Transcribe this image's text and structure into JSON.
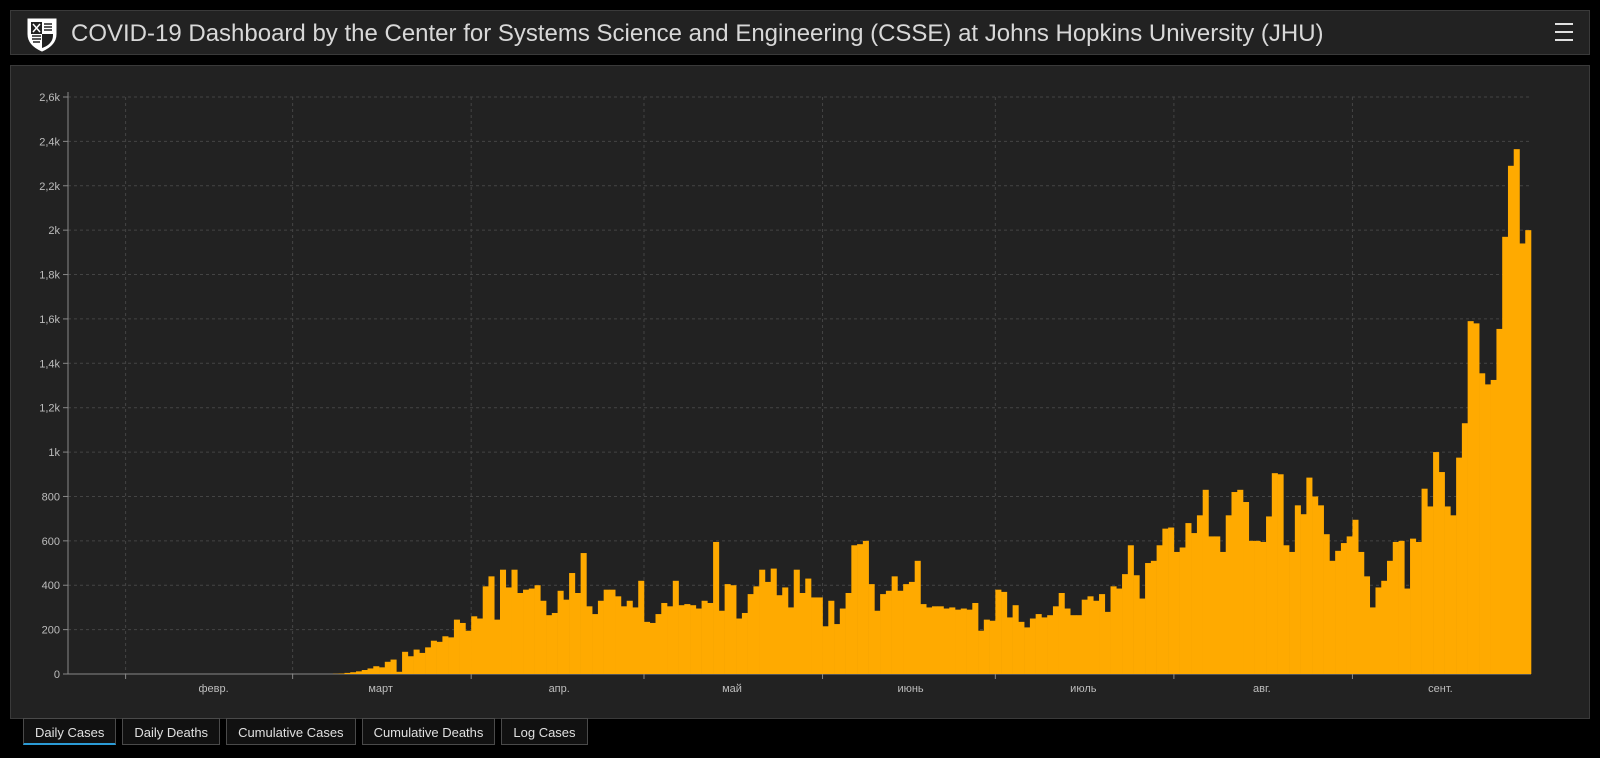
{
  "header": {
    "title": "COVID-19 Dashboard by the Center for Systems Science and Engineering (CSSE) at Johns Hopkins University (JHU)",
    "logo_icon": "jhu-shield-icon",
    "menu_icon": "hamburger-menu-icon"
  },
  "colors": {
    "bar": "#ffaa00",
    "background": "#222222",
    "grid": "#444444",
    "tab_active_underline": "#2b9bd6"
  },
  "tabs": [
    {
      "label": "Daily Cases",
      "active": true
    },
    {
      "label": "Daily Deaths",
      "active": false
    },
    {
      "label": "Cumulative Cases",
      "active": false
    },
    {
      "label": "Cumulative Deaths",
      "active": false
    },
    {
      "label": "Log Cases",
      "active": false
    }
  ],
  "chart_data": {
    "type": "bar",
    "title": "",
    "xlabel": "",
    "ylabel": "",
    "ylim": [
      0,
      2600
    ],
    "yticks": [
      0,
      200,
      400,
      600,
      800,
      1000,
      1200,
      1400,
      1600,
      1800,
      2000,
      2200,
      2400,
      2600
    ],
    "ytick_labels": [
      "0",
      "200",
      "400",
      "600",
      "800",
      "1k",
      "1,2k",
      "1,4k",
      "1,6k",
      "1,8k",
      "2k",
      "2,2k",
      "2,4k",
      "2,6k"
    ],
    "xtick_labels": [
      "февр.",
      "март",
      "апр.",
      "май",
      "июнь",
      "июль",
      "авг.",
      "сент."
    ],
    "xtick_day_index": [
      10,
      39,
      70,
      100,
      131,
      161,
      192,
      223
    ],
    "grid": true,
    "values": [
      0,
      0,
      0,
      0,
      0,
      0,
      0,
      0,
      0,
      0,
      0,
      0,
      0,
      0,
      0,
      0,
      0,
      0,
      0,
      0,
      0,
      0,
      0,
      0,
      0,
      0,
      0,
      0,
      0,
      0,
      0,
      0,
      0,
      0,
      0,
      0,
      0,
      0,
      0,
      0,
      0,
      0,
      0,
      0,
      0,
      0,
      1,
      2,
      5,
      8,
      12,
      18,
      25,
      35,
      30,
      55,
      65,
      10,
      100,
      80,
      110,
      95,
      120,
      150,
      145,
      170,
      165,
      245,
      230,
      195,
      260,
      250,
      395,
      440,
      245,
      470,
      390,
      470,
      365,
      380,
      385,
      400,
      330,
      265,
      275,
      375,
      335,
      455,
      365,
      545,
      305,
      270,
      330,
      380,
      380,
      350,
      305,
      330,
      300,
      420,
      235,
      230,
      270,
      320,
      305,
      420,
      310,
      315,
      310,
      295,
      330,
      320,
      595,
      285,
      405,
      400,
      250,
      275,
      360,
      395,
      470,
      415,
      475,
      355,
      390,
      300,
      470,
      365,
      430,
      345,
      345,
      215,
      330,
      225,
      295,
      365,
      580,
      585,
      600,
      405,
      285,
      360,
      375,
      440,
      375,
      405,
      415,
      510,
      315,
      300,
      305,
      305,
      295,
      300,
      290,
      295,
      290,
      320,
      195,
      245,
      240,
      380,
      370,
      255,
      310,
      235,
      210,
      250,
      270,
      255,
      265,
      305,
      365,
      295,
      265,
      265,
      335,
      350,
      330,
      360,
      280,
      395,
      385,
      450,
      580,
      445,
      340,
      500,
      510,
      580,
      655,
      660,
      550,
      570,
      680,
      635,
      715,
      830,
      620,
      620,
      550,
      715,
      820,
      830,
      775,
      600,
      600,
      595,
      710,
      905,
      900,
      580,
      550,
      760,
      720,
      885,
      800,
      760,
      630,
      510,
      555,
      590,
      620,
      695,
      550,
      440,
      300,
      390,
      420,
      510,
      595,
      600,
      385,
      610,
      595,
      835,
      755,
      1000,
      910,
      755,
      715,
      975,
      1130,
      1590,
      1580,
      1355,
      1305,
      1325,
      1555,
      1970,
      2290,
      2365,
      1940,
      2000
    ]
  }
}
